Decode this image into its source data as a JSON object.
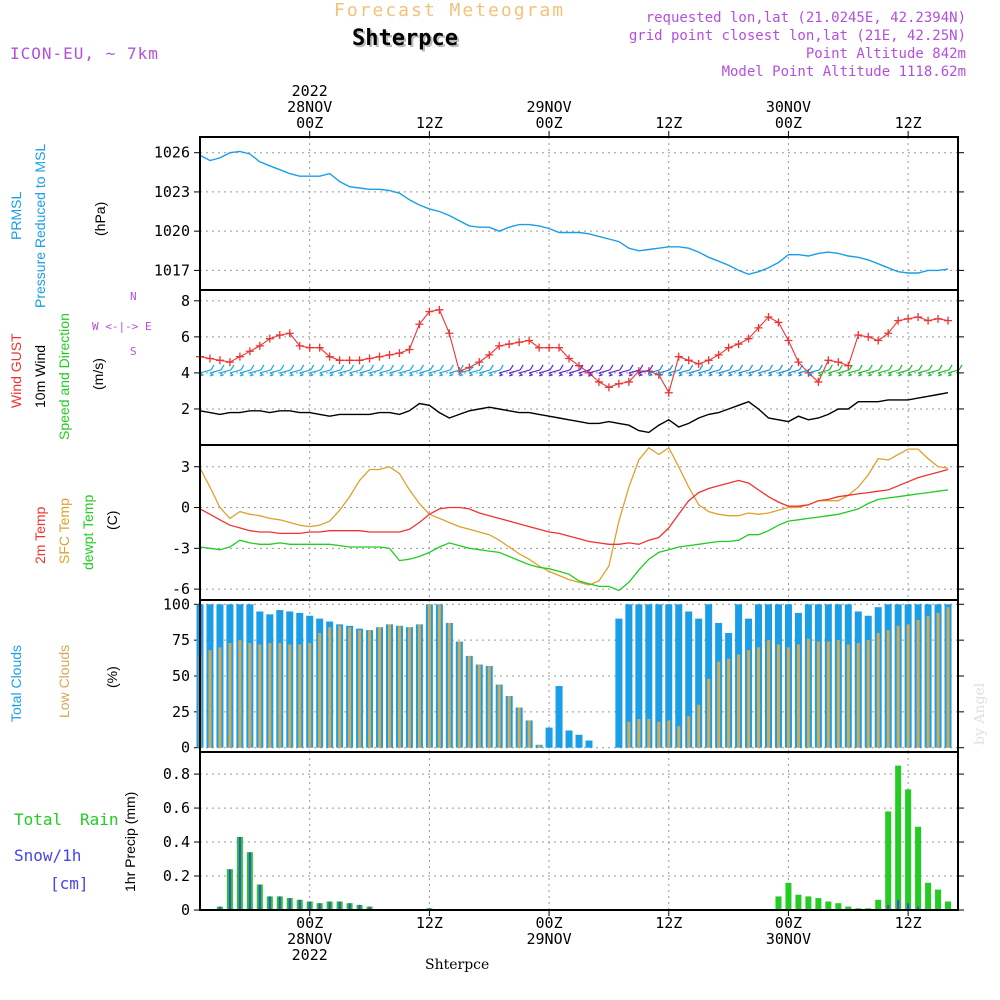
{
  "header": {
    "title_top": "Forecast Meteogram",
    "station": "Shterpce",
    "model": "ICON-EU, ~ 7km",
    "requested": "requested lon,lat (21.0245E, 42.2394N)",
    "grid_point": "grid point closest lon,lat (21E, 42.25N)",
    "point_altitude": "Point Altitude 842m",
    "model_altitude": "Model Point Altitude 1118.62m",
    "footer_station": "Shterpce",
    "credit": "by Angel"
  },
  "time_axis": {
    "top_labels": [
      {
        "lines": [
          "2022",
          "28NOV",
          "00Z"
        ],
        "t": 0
      },
      {
        "lines": [
          "12Z"
        ],
        "t": 12
      },
      {
        "lines": [
          "29NOV",
          "00Z"
        ],
        "t": 24
      },
      {
        "lines": [
          "12Z"
        ],
        "t": 36
      },
      {
        "lines": [
          "30NOV",
          "00Z"
        ],
        "t": 48
      },
      {
        "lines": [
          "12Z"
        ],
        "t": 60
      }
    ],
    "bottom_labels": [
      {
        "lines": [
          "00Z",
          "28NOV",
          "2022"
        ],
        "t": 0
      },
      {
        "lines": [
          "12Z"
        ],
        "t": 12
      },
      {
        "lines": [
          "00Z",
          "29NOV"
        ],
        "t": 24
      },
      {
        "lines": [
          "12Z"
        ],
        "t": 36
      },
      {
        "lines": [
          "00Z",
          "30NOV"
        ],
        "t": 48
      },
      {
        "lines": [
          "12Z"
        ],
        "t": 60
      }
    ],
    "range_hours": [
      -11,
      65
    ]
  },
  "colors": {
    "pressure": "#1a9ee8",
    "gust": "#ee3333",
    "wind": "#000000",
    "temp2m": "#ee3333",
    "sfc": "#e0a030",
    "dew": "#22cc22",
    "total_clouds": "#1a9ee8",
    "low_clouds": "#d2aa55",
    "rain": "#22cc22",
    "snow": "#4444ee",
    "label_purple": "#b44ee0"
  },
  "chart_data": [
    {
      "type": "line",
      "id": "pressure",
      "title": "PRMSL Pressure Reduced to MSL",
      "ylabel": [
        "PRMSL",
        "Pressure Reduced to MSL",
        "(hPa)"
      ],
      "ylim": [
        1015.5,
        1027.2
      ],
      "yticks": [
        1017,
        1020,
        1023,
        1026
      ],
      "x_start": -11,
      "x_step": 1,
      "values": [
        1025.8,
        1025.4,
        1025.6,
        1026.0,
        1026.1,
        1025.9,
        1025.3,
        1025.0,
        1024.7,
        1024.4,
        1024.2,
        1024.2,
        1024.2,
        1024.4,
        1023.8,
        1023.4,
        1023.3,
        1023.2,
        1023.2,
        1023.1,
        1022.9,
        1022.4,
        1022.0,
        1021.7,
        1021.5,
        1021.2,
        1020.8,
        1020.4,
        1020.3,
        1020.3,
        1020.0,
        1020.3,
        1020.5,
        1020.5,
        1020.4,
        1020.2,
        1019.9,
        1019.9,
        1019.9,
        1019.8,
        1019.6,
        1019.4,
        1019.2,
        1018.7,
        1018.5,
        1018.6,
        1018.7,
        1018.8,
        1018.8,
        1018.7,
        1018.4,
        1018.0,
        1017.7,
        1017.4,
        1017.0,
        1016.7,
        1016.9,
        1017.2,
        1017.6,
        1018.2,
        1018.2,
        1018.1,
        1018.3,
        1018.4,
        1018.3,
        1018.1,
        1018.0,
        1017.8,
        1017.5,
        1017.2,
        1016.9,
        1016.8,
        1016.8,
        1017.0,
        1017.0,
        1017.1
      ]
    },
    {
      "type": "line",
      "id": "wind",
      "title": "Wind GUST / 10m Wind Speed and Direction",
      "ylabel": [
        "Wind GUST",
        "10m Wind",
        "Speed and Direction",
        "(m/s)"
      ],
      "compass": [
        "N",
        "W <-|-> E",
        "S"
      ],
      "ylim": [
        0,
        8.6
      ],
      "yticks": [
        2,
        4,
        6,
        8
      ],
      "x_start": -11,
      "x_step": 1,
      "gust": [
        4.9,
        4.8,
        4.7,
        4.6,
        4.9,
        5.2,
        5.5,
        5.9,
        6.1,
        6.2,
        5.5,
        5.4,
        5.4,
        4.9,
        4.7,
        4.7,
        4.7,
        4.8,
        4.9,
        5.0,
        5.1,
        5.3,
        6.7,
        7.4,
        7.5,
        6.2,
        4.1,
        4.3,
        4.6,
        5.0,
        5.5,
        5.6,
        5.7,
        5.8,
        5.4,
        5.4,
        5.4,
        4.8,
        4.4,
        4.0,
        3.5,
        3.2,
        3.4,
        3.5,
        4.1,
        4.1,
        3.9,
        2.9,
        4.9,
        4.7,
        4.5,
        4.7,
        5.0,
        5.4,
        5.6,
        5.9,
        6.5,
        7.1,
        6.8,
        5.8,
        4.6,
        4.0,
        3.5,
        4.7,
        4.6,
        4.4,
        6.1,
        6.0,
        5.8,
        6.2,
        6.9,
        7.0,
        7.1,
        6.9,
        7.0,
        6.9
      ],
      "speed": [
        1.9,
        1.8,
        1.7,
        1.8,
        1.8,
        1.9,
        1.9,
        1.8,
        1.9,
        1.9,
        1.8,
        1.8,
        1.7,
        1.6,
        1.7,
        1.7,
        1.7,
        1.7,
        1.8,
        1.8,
        1.7,
        1.9,
        2.3,
        2.2,
        1.8,
        1.5,
        1.7,
        1.9,
        2.0,
        2.1,
        2.0,
        1.9,
        1.8,
        1.8,
        1.7,
        1.6,
        1.5,
        1.4,
        1.3,
        1.2,
        1.2,
        1.3,
        1.2,
        1.1,
        0.8,
        0.7,
        1.1,
        1.4,
        1.0,
        1.2,
        1.5,
        1.7,
        1.8,
        2.0,
        2.2,
        2.4,
        2.0,
        1.5,
        1.4,
        1.3,
        1.6,
        1.4,
        1.5,
        1.7,
        2.0,
        2.0,
        2.4,
        2.4,
        2.4,
        2.5,
        2.5,
        2.5,
        2.6,
        2.7,
        2.8,
        2.9
      ],
      "barb_direction": "westerly flow turning south-westerly"
    },
    {
      "type": "line",
      "id": "temperature",
      "title": "2m Temp / SFC Temp / dewpt Temp",
      "ylabel": [
        "2m Temp",
        "SFC Temp",
        "dewpt Temp",
        "(C)"
      ],
      "ylim": [
        -6.8,
        4.6
      ],
      "yticks": [
        -6,
        -3,
        0,
        3
      ],
      "x_start": -11,
      "x_step": 1,
      "temp2m": [
        -0.1,
        -0.5,
        -0.9,
        -1.3,
        -1.5,
        -1.7,
        -1.8,
        -1.8,
        -1.9,
        -1.9,
        -1.9,
        -1.8,
        -1.8,
        -1.7,
        -1.7,
        -1.7,
        -1.7,
        -1.8,
        -1.8,
        -1.8,
        -1.8,
        -1.6,
        -1.1,
        -0.5,
        -0.1,
        0.0,
        0.0,
        -0.1,
        -0.4,
        -0.6,
        -0.8,
        -1.0,
        -1.2,
        -1.4,
        -1.6,
        -1.8,
        -1.9,
        -2.1,
        -2.3,
        -2.5,
        -2.6,
        -2.7,
        -2.7,
        -2.6,
        -2.7,
        -2.4,
        -2.2,
        -1.5,
        -0.5,
        0.5,
        1.1,
        1.4,
        1.6,
        1.8,
        2.0,
        1.8,
        1.3,
        0.8,
        0.4,
        0.1,
        0.1,
        0.2,
        0.5,
        0.6,
        0.8,
        0.9,
        1.0,
        1.1,
        1.2,
        1.3,
        1.6,
        1.9,
        2.2,
        2.4,
        2.6,
        2.8
      ],
      "sfc": [
        2.9,
        1.5,
        0.0,
        -0.8,
        -0.3,
        -0.5,
        -0.6,
        -0.8,
        -0.9,
        -1.1,
        -1.3,
        -1.4,
        -1.3,
        -1.0,
        -0.2,
        0.8,
        2.0,
        2.8,
        2.8,
        3.0,
        2.5,
        1.3,
        0.3,
        -0.5,
        -0.8,
        -1.1,
        -1.4,
        -1.6,
        -1.8,
        -2.0,
        -2.4,
        -2.9,
        -3.4,
        -3.8,
        -4.3,
        -4.7,
        -5.0,
        -5.3,
        -5.5,
        -5.7,
        -5.4,
        -4.3,
        -1.0,
        1.5,
        3.5,
        4.4,
        3.9,
        4.4,
        3.0,
        1.5,
        0.2,
        -0.3,
        -0.5,
        -0.6,
        -0.6,
        -0.4,
        -0.5,
        -0.4,
        -0.2,
        0.0,
        0.0,
        0.2,
        0.5,
        0.5,
        0.5,
        0.9,
        1.5,
        2.4,
        3.6,
        3.5,
        3.9,
        4.3,
        4.3,
        3.6,
        3.0,
        2.9
      ],
      "dew": [
        -2.9,
        -3.0,
        -3.1,
        -2.9,
        -2.4,
        -2.6,
        -2.7,
        -2.7,
        -2.6,
        -2.7,
        -2.7,
        -2.7,
        -2.7,
        -2.7,
        -2.8,
        -2.9,
        -2.9,
        -2.9,
        -2.9,
        -3.0,
        -3.9,
        -3.8,
        -3.6,
        -3.3,
        -2.9,
        -2.6,
        -2.8,
        -3.0,
        -3.1,
        -3.2,
        -3.3,
        -3.6,
        -3.9,
        -4.2,
        -4.4,
        -4.5,
        -4.7,
        -4.9,
        -5.4,
        -5.6,
        -5.8,
        -5.8,
        -6.1,
        -5.5,
        -4.6,
        -3.8,
        -3.3,
        -3.1,
        -2.9,
        -2.8,
        -2.7,
        -2.6,
        -2.5,
        -2.5,
        -2.4,
        -2.0,
        -2.0,
        -1.7,
        -1.3,
        -1.0,
        -0.9,
        -0.8,
        -0.7,
        -0.6,
        -0.5,
        -0.3,
        -0.1,
        0.3,
        0.6,
        0.7,
        0.8,
        0.9,
        1.0,
        1.1,
        1.2,
        1.3
      ]
    },
    {
      "type": "bar",
      "id": "clouds",
      "title": "Total Clouds / Low Clouds",
      "ylabel": [
        "Total Clouds",
        "Low Clouds",
        "(%)"
      ],
      "ylim": [
        -3,
        103
      ],
      "yticks": [
        0,
        25,
        50,
        75,
        100
      ],
      "x_start": -11,
      "x_step": 1,
      "total": [
        100,
        100,
        100,
        100,
        100,
        100,
        95,
        93,
        96,
        95,
        94,
        92,
        90,
        88,
        86,
        85,
        83,
        82,
        84,
        86,
        85,
        84,
        86,
        100,
        100,
        87,
        74,
        64,
        58,
        57,
        44,
        36,
        28,
        19,
        2,
        14,
        43,
        12,
        9,
        5,
        0,
        0,
        90,
        100,
        100,
        100,
        100,
        100,
        100,
        95,
        90,
        100,
        87,
        80,
        100,
        90,
        100,
        100,
        100,
        100,
        94,
        100,
        100,
        100,
        100,
        100,
        95,
        92,
        98,
        100,
        100,
        100,
        100,
        100,
        100,
        100
      ],
      "low": [
        65,
        68,
        70,
        73,
        75,
        73,
        72,
        73,
        73,
        72,
        72,
        73,
        80,
        84,
        85,
        84,
        82,
        82,
        84,
        86,
        85,
        84,
        86,
        100,
        100,
        87,
        74,
        64,
        58,
        57,
        44,
        36,
        28,
        19,
        2,
        0,
        0,
        0,
        0,
        0,
        0,
        0,
        0,
        18,
        20,
        20,
        18,
        19,
        15,
        22,
        30,
        48,
        60,
        62,
        65,
        68,
        70,
        75,
        72,
        70,
        72,
        76,
        74,
        74,
        75,
        72,
        73,
        75,
        80,
        82,
        85,
        86,
        89,
        92,
        94,
        98
      ]
    },
    {
      "type": "bar",
      "id": "precip",
      "title": "1hr Precip (mm) - Total Rain / Snow/1h [cm]",
      "ylabel": [
        "1hr Precip (mm)"
      ],
      "legend": [
        "Total",
        "Rain",
        "Snow/1h",
        "[cm]"
      ],
      "ylim": [
        0,
        0.93
      ],
      "yticks": [
        0,
        0.2,
        0.4,
        0.6,
        0.8
      ],
      "x_start": -11,
      "x_step": 1,
      "total": [
        0,
        0,
        0.02,
        0.24,
        0.43,
        0.34,
        0.15,
        0.08,
        0.08,
        0.07,
        0.06,
        0.05,
        0.04,
        0.05,
        0.05,
        0.04,
        0.03,
        0.02,
        0,
        0,
        0,
        0,
        0,
        0.01,
        0,
        0,
        0,
        0,
        0,
        0,
        0,
        0,
        0,
        0,
        0,
        0,
        0,
        0,
        0,
        0,
        0,
        0,
        0,
        0,
        0,
        0,
        0,
        0,
        0,
        0,
        0,
        0,
        0,
        0,
        0,
        0,
        0,
        0,
        0.08,
        0.16,
        0.09,
        0.08,
        0.07,
        0.05,
        0.04,
        0.02,
        0.01,
        0.01,
        0.06,
        0.58,
        0.85,
        0.71,
        0.49,
        0.16,
        0.12,
        0.05
      ],
      "snow": [
        0,
        0,
        0.02,
        0.24,
        0.43,
        0.34,
        0.15,
        0.08,
        0.08,
        0.07,
        0.06,
        0.05,
        0.04,
        0.05,
        0.05,
        0.04,
        0.03,
        0.02,
        0,
        0,
        0,
        0,
        0,
        0.01,
        0,
        0,
        0,
        0,
        0,
        0,
        0,
        0,
        0,
        0,
        0,
        0,
        0,
        0,
        0,
        0,
        0,
        0,
        0,
        0,
        0,
        0,
        0,
        0,
        0,
        0,
        0,
        0,
        0,
        0,
        0,
        0,
        0,
        0,
        0,
        0,
        0,
        0,
        0,
        0,
        0,
        0,
        0,
        0,
        0,
        0.03,
        0.06,
        0.04,
        0.02,
        0,
        0,
        0
      ]
    }
  ]
}
